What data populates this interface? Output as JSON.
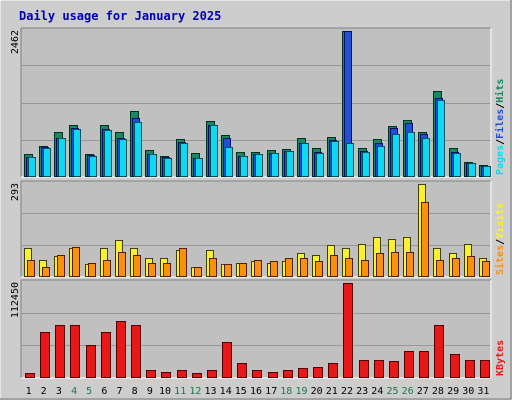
{
  "chart_data": {
    "type": "bar",
    "title": "Daily usage for January 2025",
    "days": [
      "1",
      "2",
      "3",
      "4",
      "5",
      "6",
      "7",
      "8",
      "9",
      "10",
      "11",
      "12",
      "13",
      "14",
      "15",
      "16",
      "17",
      "18",
      "19",
      "20",
      "21",
      "22",
      "23",
      "24",
      "25",
      "26",
      "27",
      "28",
      "29",
      "30",
      "31"
    ],
    "weekend_days": [
      "4",
      "5",
      "11",
      "12",
      "18",
      "19",
      "25",
      "26"
    ],
    "colors": {
      "title": "#0000b4",
      "weekend_label": "#1e7848",
      "weekday_label": "#000000",
      "hits": "#188860",
      "files": "#2050d8",
      "pages": "#10d8f0",
      "visits": "#f8f030",
      "sites": "#f89010",
      "kbytes": "#e81818",
      "plot_bg": "#c0c0c0",
      "grid": "#989898"
    },
    "panels": [
      {
        "id": "hits_files_pages",
        "max_label": "2462",
        "ymax": 2462,
        "legend": [
          "Pages",
          "/",
          "Files",
          "/",
          "Hits"
        ],
        "series": [
          {
            "name": "Hits",
            "values": [
              380,
              520,
              760,
              870,
              380,
              870,
              760,
              1110,
              460,
              360,
              640,
              400,
              950,
              700,
              420,
              430,
              450,
              470,
              650,
              490,
              680,
              2462,
              490,
              640,
              860,
              960,
              760,
              1450,
              490,
              260,
              210
            ]
          },
          {
            "name": "Files",
            "values": [
              330,
              510,
              660,
              830,
              370,
              810,
              660,
              990,
              390,
              340,
              590,
              320,
              880,
              660,
              360,
              380,
              400,
              440,
              580,
              430,
              620,
              2462,
              440,
              570,
              820,
              910,
              720,
              1340,
              430,
              240,
              190
            ]
          },
          {
            "name": "Pages",
            "values": [
              330,
              490,
              660,
              810,
              360,
              800,
              640,
              920,
              390,
              320,
              580,
              320,
              870,
              500,
              360,
              380,
              400,
              440,
              580,
              410,
              610,
              570,
              430,
              520,
              730,
              760,
              660,
              1300,
              410,
              240,
              190
            ]
          }
        ]
      },
      {
        "id": "visits_sites",
        "max_label": "293",
        "ymax": 293,
        "legend": [
          "Sites",
          "/",
          "Visits"
        ],
        "series": [
          {
            "name": "Visits",
            "values": [
              90,
              55,
              65,
              90,
              40,
              90,
              115,
              90,
              60,
              60,
              85,
              30,
              85,
              40,
              45,
              50,
              45,
              50,
              75,
              70,
              100,
              90,
              105,
              125,
              120,
              125,
              293,
              90,
              75,
              105,
              60
            ]
          },
          {
            "name": "Sites",
            "values": [
              55,
              30,
              70,
              95,
              45,
              55,
              80,
              70,
              45,
              45,
              90,
              30,
              60,
              40,
              45,
              55,
              50,
              60,
              60,
              50,
              70,
              60,
              55,
              75,
              80,
              80,
              235,
              55,
              60,
              65,
              50
            ]
          }
        ]
      },
      {
        "id": "kbytes",
        "max_label": "112450",
        "ymax": 112450,
        "legend": [
          "KBytes"
        ],
        "series": [
          {
            "name": "KBytes",
            "values": [
              6000,
              54000,
              63000,
              63000,
              39000,
              55000,
              68000,
              63000,
              9000,
              7000,
              9000,
              6000,
              9000,
              43000,
              18000,
              9000,
              7000,
              10000,
              12000,
              13000,
              18000,
              112450,
              21000,
              21000,
              20000,
              32000,
              32000,
              63000,
              28000,
              21000,
              21000
            ]
          }
        ]
      }
    ]
  }
}
